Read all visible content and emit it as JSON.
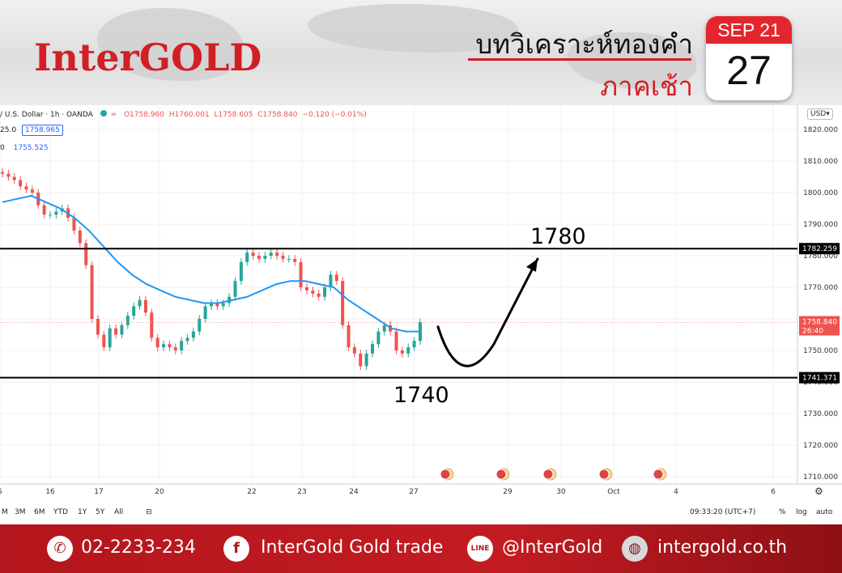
{
  "brand": {
    "logo": "InterGOLD"
  },
  "title": {
    "main": "บทวิเคราะห์ทองคำ",
    "sub": "ภาคเช้า"
  },
  "calendar": {
    "month": "SEP 21",
    "day": "27"
  },
  "chart_header": {
    "symbol": "/ U.S. Dollar · 1h · OANDA",
    "open": "O1758.960",
    "high": "H1760.001",
    "low": "L1758.605",
    "close": "C1758.840",
    "change": "−0.120 (−0.01%)"
  },
  "indicators": {
    "ind1_label": "25.0",
    "ind1_value": "1758.965",
    "ind2_label": "0",
    "ind2_value": "1755.525"
  },
  "currency_button": "USD",
  "bottom_bar": {
    "ranges": [
      "M",
      "3M",
      "6M",
      "YTD",
      "1Y",
      "5Y",
      "All"
    ],
    "time": "09:33:20 (UTC+7)",
    "pct": "%",
    "log": "log",
    "auto": "auto"
  },
  "footer": {
    "phone": "02-2233-234",
    "facebook": "InterGold Gold trade",
    "line": "@InterGold",
    "website": "intergold.co.th"
  },
  "chart_data": {
    "type": "line",
    "title": "",
    "xlabel": "",
    "ylabel": "",
    "ylim": [
      1708,
      1824
    ],
    "y_ticks": [
      1710,
      1720,
      1730,
      1740,
      1750,
      1760,
      1770,
      1780,
      1790,
      1800,
      1810,
      1820
    ],
    "x_tick_labels": [
      "5",
      "16",
      "17",
      "20",
      "22",
      "23",
      "24",
      "27",
      "29",
      "30",
      "Oct",
      "4",
      "6"
    ],
    "close_series": [
      1806,
      1805,
      1804,
      1802,
      1801,
      1800,
      1796,
      1793,
      1793,
      1794,
      1795,
      1792,
      1788,
      1784,
      1777,
      1760,
      1755,
      1751,
      1757,
      1755,
      1758,
      1761,
      1764,
      1766,
      1762,
      1754,
      1751,
      1752,
      1751,
      1750,
      1753,
      1754,
      1756,
      1760,
      1764,
      1765,
      1764,
      1765,
      1767,
      1772,
      1778,
      1781,
      1780,
      1779,
      1780,
      1781,
      1780,
      1779,
      1779,
      1778,
      1770,
      1769,
      1768,
      1767,
      1770,
      1774,
      1772,
      1758,
      1751,
      1749,
      1745,
      1749,
      1752,
      1756,
      1758,
      1756,
      1750,
      1749,
      1751,
      1753,
      1759
    ],
    "ma_series": [
      1797,
      1798,
      1799,
      1797,
      1795,
      1792,
      1788,
      1783,
      1778,
      1774,
      1771,
      1769,
      1767,
      1766,
      1765,
      1765,
      1766,
      1767,
      1769,
      1771,
      1772,
      1772,
      1771,
      1770,
      1766,
      1763,
      1760,
      1757,
      1756,
      1756
    ],
    "levels": [
      {
        "name": "resistance",
        "value": 1782.259,
        "label": "1780"
      },
      {
        "name": "support",
        "value": 1741.371,
        "label": "1740"
      }
    ],
    "last_price": {
      "value": 1758.84,
      "countdown": "26:40"
    },
    "projection": {
      "from": 1755,
      "low": 1744,
      "target": 1780
    }
  },
  "colors": {
    "accent": "#d21f26",
    "up": "#26a69a",
    "down": "#ef5350",
    "ma": "#2196f3"
  }
}
